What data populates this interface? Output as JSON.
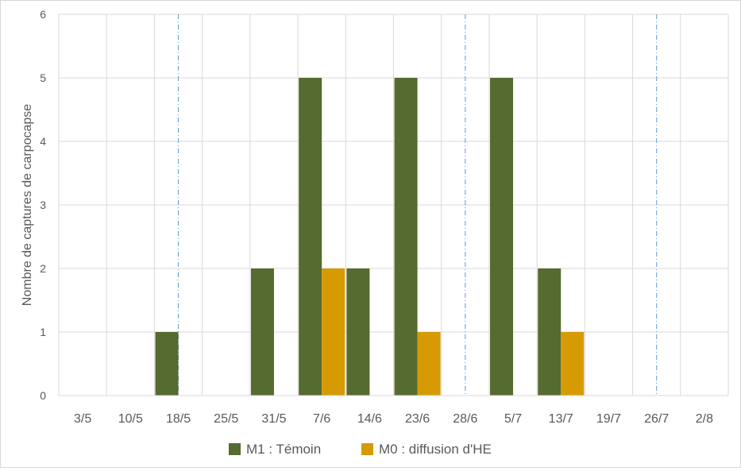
{
  "chart_data": {
    "type": "bar",
    "title": "",
    "xlabel": "",
    "ylabel": "Nombre de captures de carpocapse",
    "ylim": [
      0,
      6
    ],
    "yticks": [
      0,
      1,
      2,
      3,
      4,
      5,
      6
    ],
    "grid": true,
    "legend_position": "bottom",
    "categories": [
      "3/5",
      "10/5",
      "18/5",
      "25/5",
      "31/5",
      "7/6",
      "14/6",
      "23/6",
      "28/6",
      "5/7",
      "13/7",
      "19/7",
      "26/7",
      "2/8"
    ],
    "series": [
      {
        "name": "M1 : Témoin",
        "color": "#556b2f",
        "values": [
          0,
          0,
          1,
          0,
          2,
          5,
          2,
          5,
          0,
          5,
          2,
          0,
          0,
          0
        ]
      },
      {
        "name": "M0 : diffusion d'HE",
        "color": "#d69a05",
        "values": [
          0,
          0,
          0,
          0,
          0,
          2,
          0,
          1,
          0,
          0,
          1,
          0,
          0,
          0
        ]
      }
    ],
    "reference_lines": {
      "at_categories": [
        "18/5",
        "28/6",
        "26/7"
      ],
      "color": "#5b9bd5",
      "style": "dash-dot"
    }
  }
}
